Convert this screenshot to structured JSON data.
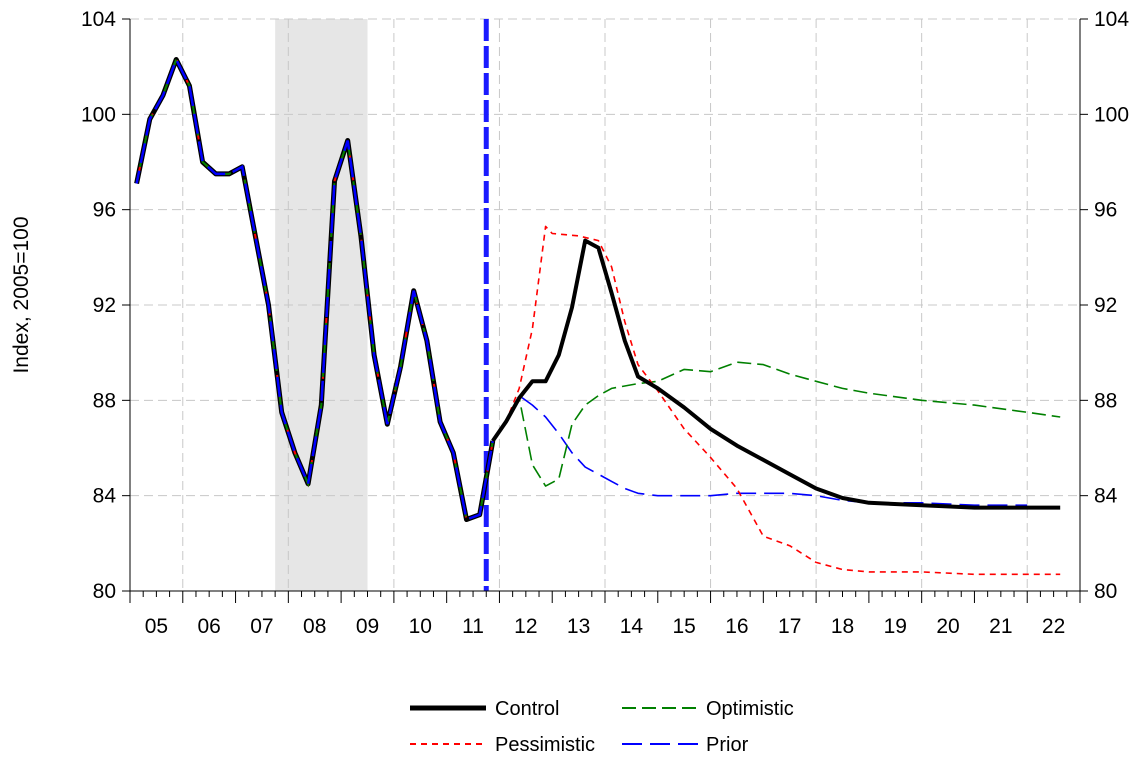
{
  "chart_data": {
    "type": "line",
    "ylabel": "Index, 2005=100",
    "ylim": [
      80,
      104
    ],
    "yticks": [
      80,
      84,
      88,
      92,
      96,
      100,
      104
    ],
    "xlim": [
      2005.0,
      2023.0
    ],
    "xtick_labels": [
      "05",
      "06",
      "07",
      "08",
      "09",
      "10",
      "11",
      "12",
      "13",
      "14",
      "15",
      "16",
      "17",
      "18",
      "19",
      "20",
      "21",
      "22"
    ],
    "grid": true,
    "recession_shade": {
      "x0": 2007.75,
      "x1": 2009.5
    },
    "forecast_start": 2011.75,
    "legend": [
      {
        "series": "Control",
        "label": "Control"
      },
      {
        "series": "Optimistic",
        "label": "Optimistic"
      },
      {
        "series": "Pessimistic",
        "label": "Pessimistic"
      },
      {
        "series": "Prior",
        "label": "Prior"
      }
    ],
    "history": {
      "x": [
        2005.125,
        2005.375,
        2005.625,
        2005.875,
        2006.125,
        2006.375,
        2006.625,
        2006.875,
        2007.125,
        2007.375,
        2007.625,
        2007.875,
        2008.125,
        2008.375,
        2008.625,
        2008.875,
        2009.125,
        2009.375,
        2009.625,
        2009.875,
        2010.125,
        2010.375,
        2010.625,
        2010.875,
        2011.125,
        2011.375,
        2011.625,
        2011.875
      ],
      "y": [
        97.1,
        99.8,
        100.8,
        102.3,
        101.2,
        98.0,
        97.5,
        97.5,
        97.8,
        94.9,
        92.0,
        87.5,
        85.8,
        84.5,
        87.8,
        97.2,
        98.9,
        94.9,
        89.9,
        87.0,
        89.4,
        92.6,
        90.5,
        87.1,
        85.8,
        83.0,
        83.2,
        86.3
      ]
    },
    "series": [
      {
        "name": "Control",
        "color": "#000000",
        "x": [
          2011.875,
          2012.125,
          2012.375,
          2012.625,
          2012.875,
          2013.125,
          2013.375,
          2013.625,
          2013.875,
          2014.125,
          2014.375,
          2014.625,
          2015.0,
          2015.5,
          2016.0,
          2016.5,
          2017.0,
          2017.5,
          2018.0,
          2018.5,
          2019.0,
          2020.0,
          2021.0,
          2022.0,
          2022.625
        ],
        "y": [
          86.3,
          87.1,
          88.1,
          88.8,
          88.8,
          89.9,
          91.9,
          94.7,
          94.4,
          92.5,
          90.5,
          89.0,
          88.5,
          87.7,
          86.8,
          86.1,
          85.5,
          84.9,
          84.3,
          83.9,
          83.7,
          83.6,
          83.5,
          83.5,
          83.5
        ]
      },
      {
        "name": "Pessimistic",
        "color": "#ff0000",
        "x": [
          2011.875,
          2012.125,
          2012.375,
          2012.625,
          2012.875,
          2013.0,
          2013.5,
          2013.875,
          2014.125,
          2014.375,
          2014.625,
          2015.0,
          2015.5,
          2016.0,
          2016.5,
          2017.0,
          2017.5,
          2018.0,
          2018.5,
          2019.0,
          2020.0,
          2021.0,
          2022.0,
          2022.625
        ],
        "y": [
          86.3,
          87.1,
          88.5,
          91.0,
          95.3,
          95.0,
          94.9,
          94.7,
          93.6,
          91.3,
          89.5,
          88.4,
          86.8,
          85.6,
          84.3,
          82.3,
          81.9,
          81.2,
          80.9,
          80.8,
          80.8,
          80.7,
          80.7,
          80.7
        ]
      },
      {
        "name": "Optimistic",
        "color": "#008000",
        "x": [
          2011.875,
          2012.125,
          2012.375,
          2012.625,
          2012.875,
          2013.125,
          2013.375,
          2013.625,
          2013.875,
          2014.125,
          2014.375,
          2014.625,
          2015.0,
          2015.5,
          2016.0,
          2016.5,
          2017.0,
          2017.5,
          2018.0,
          2018.5,
          2019.0,
          2020.0,
          2021.0,
          2022.0,
          2022.625
        ],
        "y": [
          86.3,
          87.1,
          88.1,
          85.3,
          84.4,
          84.7,
          87.0,
          87.8,
          88.2,
          88.5,
          88.6,
          88.7,
          88.8,
          89.3,
          89.2,
          89.6,
          89.5,
          89.1,
          88.8,
          88.5,
          88.3,
          88.0,
          87.8,
          87.5,
          87.3
        ]
      },
      {
        "name": "Prior",
        "color": "#0000ff",
        "x": [
          2011.875,
          2012.125,
          2012.375,
          2012.625,
          2012.875,
          2013.125,
          2013.375,
          2013.625,
          2013.875,
          2014.125,
          2014.375,
          2014.625,
          2015.0,
          2015.5,
          2016.0,
          2016.5,
          2017.0,
          2017.5,
          2018.0,
          2018.5,
          2019.0,
          2020.0,
          2021.0,
          2022.0
        ],
        "y": [
          86.3,
          87.1,
          88.2,
          87.8,
          87.3,
          86.6,
          85.8,
          85.2,
          84.9,
          84.6,
          84.3,
          84.1,
          84.0,
          84.0,
          84.0,
          84.1,
          84.1,
          84.1,
          84.0,
          83.8,
          83.7,
          83.7,
          83.6,
          83.6
        ]
      }
    ]
  },
  "legend_labels": {
    "control": "Control",
    "optimistic": "Optimistic",
    "pessimistic": "Pessimistic",
    "prior": "Prior"
  }
}
